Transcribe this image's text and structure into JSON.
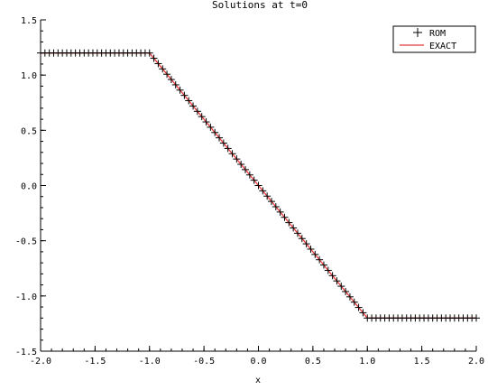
{
  "chart_data": {
    "type": "line",
    "title": "Solutions at t=0",
    "xlabel": "x",
    "ylabel": "",
    "xlim": [
      -2.0,
      2.0
    ],
    "ylim": [
      -1.5,
      1.5
    ],
    "grid": false,
    "legend_position": "top-right",
    "x_ticks": [
      "-2.0",
      "-1.5",
      "-1.0",
      "-0.5",
      "0.0",
      "0.5",
      "1.0",
      "1.5",
      "2.0"
    ],
    "y_ticks": [
      "-1.5",
      "-1.0",
      "-0.5",
      "0.0",
      "0.5",
      "1.0",
      "1.5"
    ],
    "series": [
      {
        "name": "ROM",
        "style": "markers",
        "marker": "plus",
        "color": "#000000",
        "sampling": {
          "x_start": -2.0,
          "x_end": 2.0,
          "step": 0.04
        }
      },
      {
        "name": "EXACT",
        "style": "line",
        "color": "#e8383b",
        "x": [
          -2.0,
          -1.0,
          1.0,
          2.0
        ],
        "y": [
          1.2,
          1.2,
          -1.2,
          -1.2
        ]
      }
    ]
  }
}
